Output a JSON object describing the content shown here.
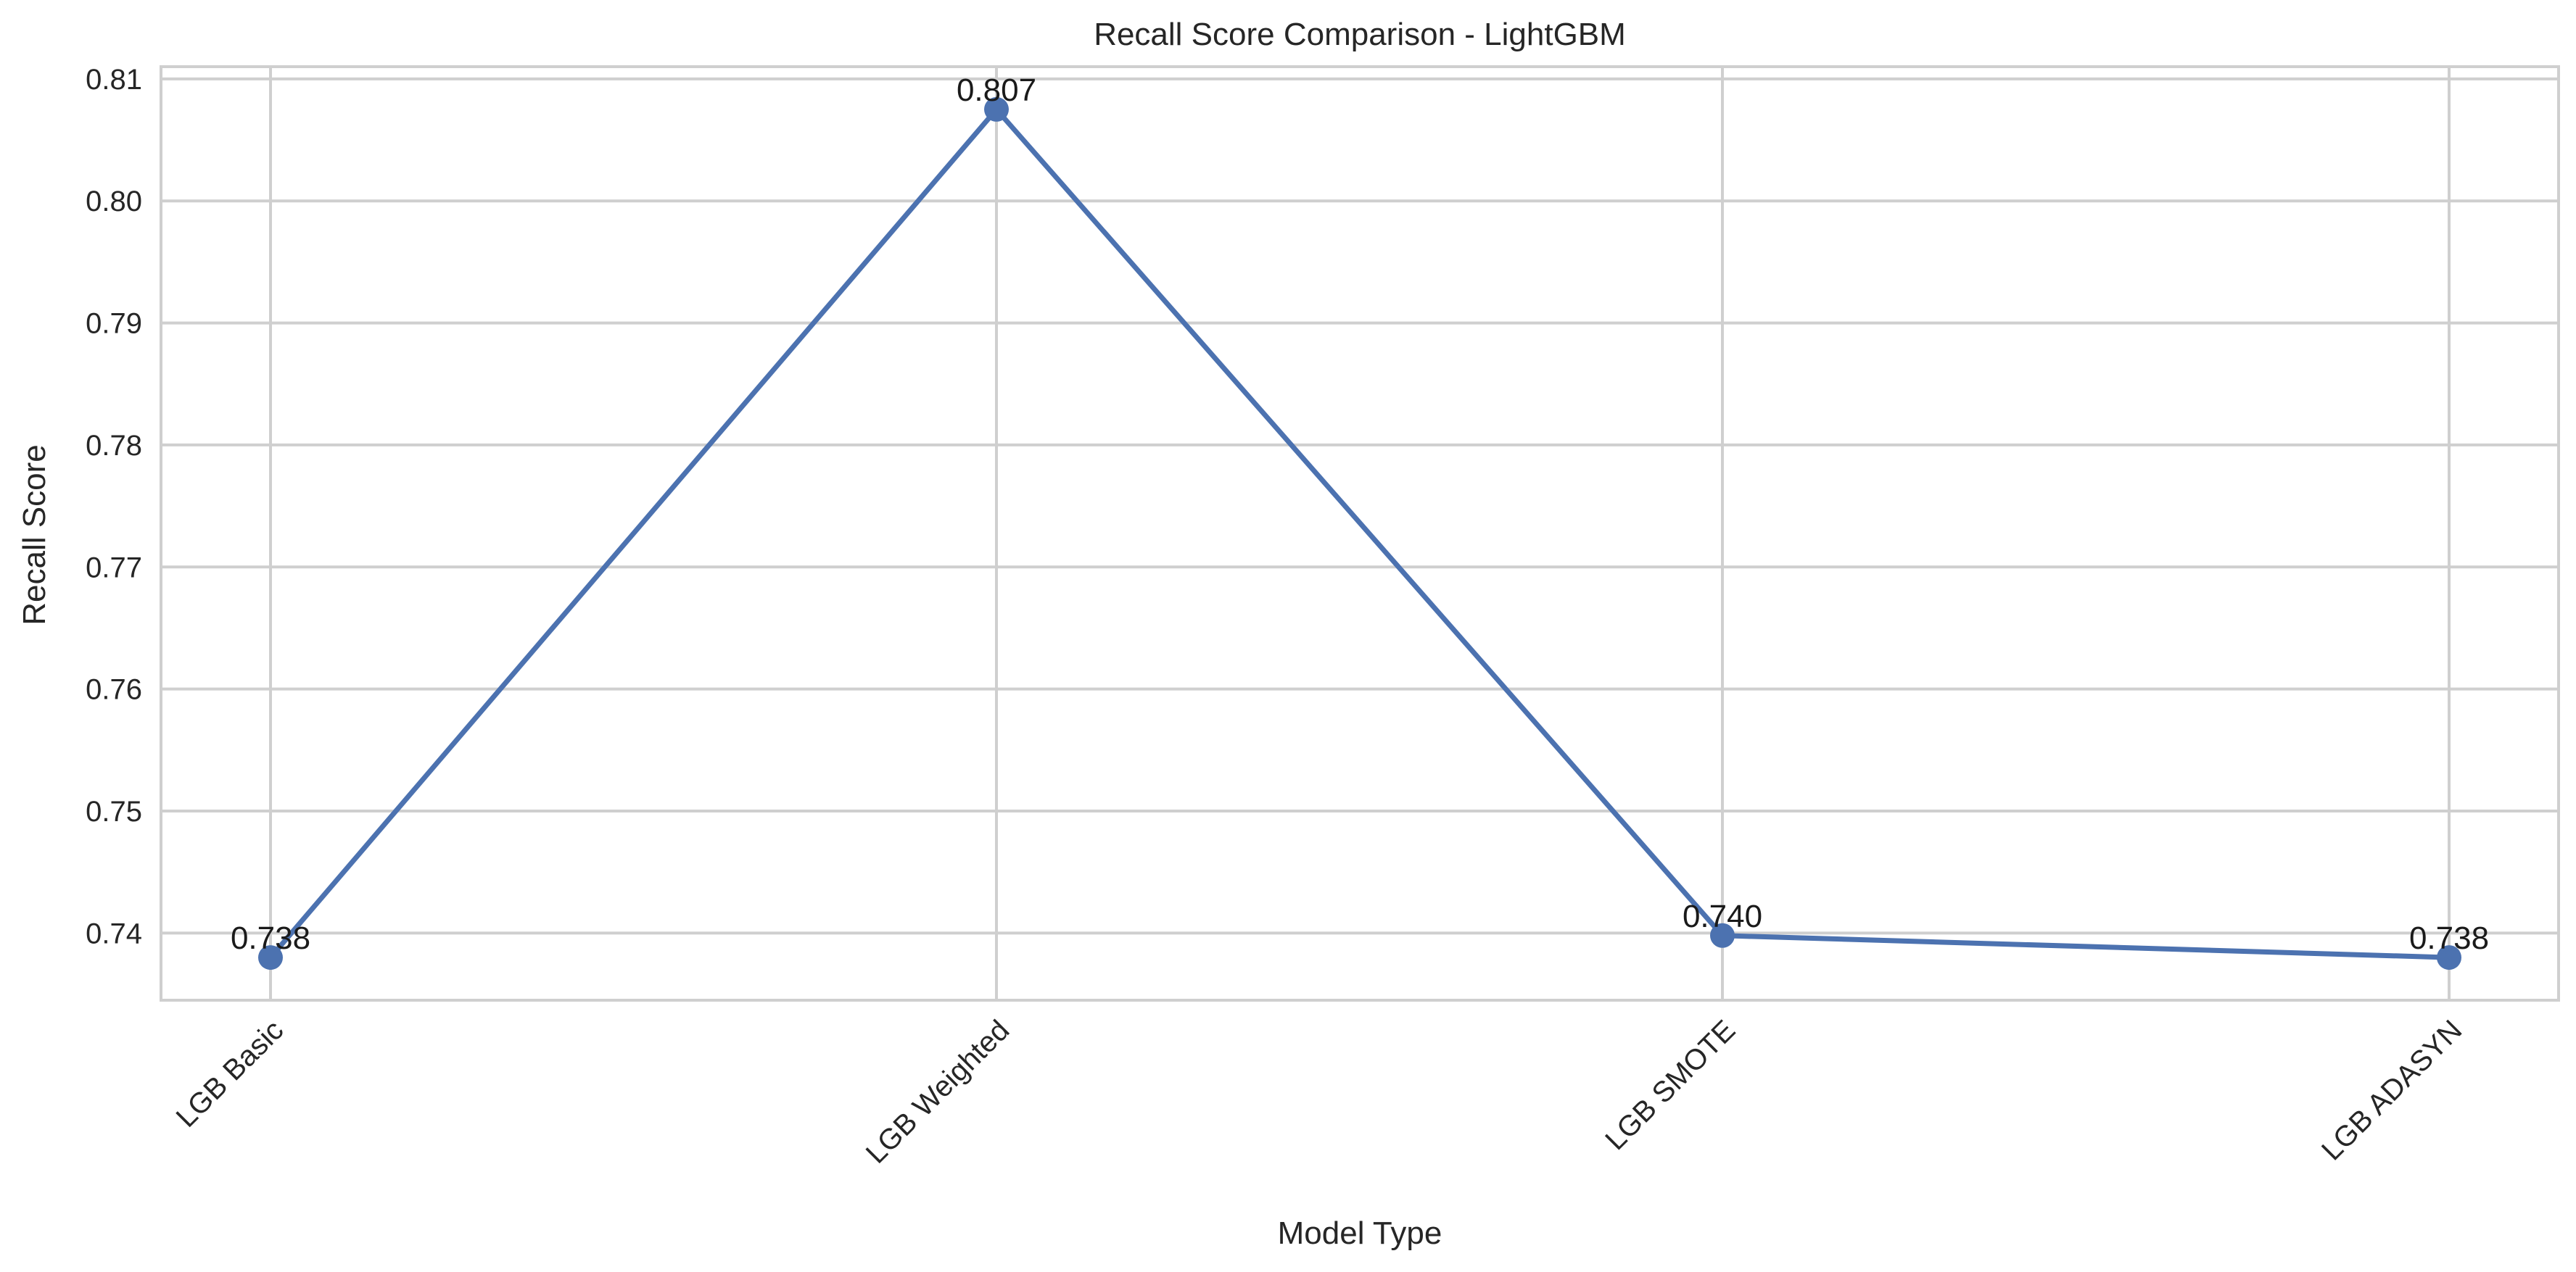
{
  "chart_data": {
    "type": "line",
    "title": "Recall Score Comparison - LightGBM",
    "xlabel": "Model Type",
    "ylabel": "Recall Score",
    "categories": [
      "LGB Basic",
      "LGB Weighted",
      "LGB SMOTE",
      "LGB ADASYN"
    ],
    "series": [
      {
        "values": [
          0.738,
          0.8075,
          0.7398,
          0.738
        ],
        "labels": [
          "0.738",
          "0.807",
          "0.740",
          "0.738"
        ]
      }
    ],
    "ylim": [
      0.7345,
      0.811
    ],
    "yticks": [
      0.74,
      0.75,
      0.76,
      0.77,
      0.78,
      0.79,
      0.8,
      0.81
    ],
    "ytick_labels": [
      "0.74",
      "0.75",
      "0.76",
      "0.77",
      "0.78",
      "0.79",
      "0.80",
      "0.81"
    ],
    "grid": true,
    "color": "#4c72b0"
  }
}
